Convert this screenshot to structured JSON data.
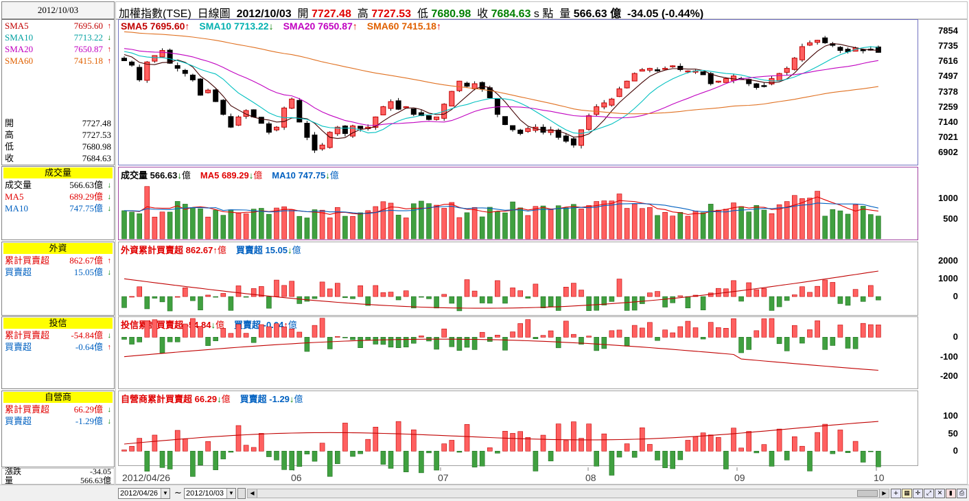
{
  "header": {
    "date_box": "2012/10/03",
    "index_name": "加權指數(TSE)",
    "chart_type": "日線圖",
    "date": "2012/10/03",
    "open_label": "開",
    "open": "7727.48",
    "high_label": "高",
    "high": "7727.53",
    "low_label": "低",
    "low": "7680.98",
    "close_label": "收",
    "close": "7684.63",
    "s_points": "s 點",
    "vol_label": "量",
    "volume": "566.63 億",
    "change": "-34.05 (-0.44%)"
  },
  "sidebar": {
    "price": [
      {
        "label": "SMA5",
        "value": "7695.60",
        "arrow": "↑",
        "color": "#c00000"
      },
      {
        "label": "SMA10",
        "value": "7713.22",
        "arrow": "↓",
        "color": "#00a0a0"
      },
      {
        "label": "SMA20",
        "value": "7650.87",
        "arrow": "↑",
        "color": "#c000c0"
      },
      {
        "label": "SMA60",
        "value": "7415.18",
        "arrow": "↑",
        "color": "#e06000"
      }
    ],
    "ohlc": [
      {
        "label": "開",
        "value": "7727.48"
      },
      {
        "label": "高",
        "value": "7727.53"
      },
      {
        "label": "低",
        "value": "7680.98"
      },
      {
        "label": "收",
        "value": "7684.63"
      }
    ],
    "volume": {
      "title": "成交量",
      "rows": [
        {
          "label": "成交量",
          "value": "566.63億",
          "arrow": "↓",
          "color": "#000000"
        },
        {
          "label": "MA5",
          "value": "689.29億",
          "arrow": "↓",
          "color": "#e00000"
        },
        {
          "label": "MA10",
          "value": "747.75億",
          "arrow": "↓",
          "color": "#0060c0"
        }
      ]
    },
    "foreign": {
      "title": "外資",
      "rows": [
        {
          "label": "累計買賣超",
          "value": "862.67億",
          "arrow": "↑",
          "color": "#e00000"
        },
        {
          "label": "買賣超",
          "value": "15.05億",
          "arrow": "↓",
          "color": "#0060c0"
        }
      ]
    },
    "trust": {
      "title": "投信",
      "rows": [
        {
          "label": "累計買賣超",
          "value": "-54.84億",
          "arrow": "↓",
          "color": "#e00000"
        },
        {
          "label": "買賣超",
          "value": "-0.64億",
          "arrow": "↑",
          "color": "#0060c0"
        }
      ]
    },
    "dealer": {
      "title": "自營商",
      "rows": [
        {
          "label": "累計買賣超",
          "value": "66.29億",
          "arrow": "↓",
          "color": "#e00000"
        },
        {
          "label": "買賣超",
          "value": "-1.29億",
          "arrow": "↓",
          "color": "#0060c0"
        }
      ]
    },
    "bottom": [
      {
        "label": "漲跌",
        "value": "-34.05"
      },
      {
        "label": "量",
        "value": "566.63億"
      }
    ]
  },
  "panel_titles": {
    "price": [
      {
        "text": "SMA5 7695.60",
        "arrow": "↑",
        "color": "#c00000"
      },
      {
        "text": "SMA10 7713.22",
        "arrow": "↓",
        "color": "#00b0b0"
      },
      {
        "text": "SMA20 7650.87",
        "arrow": "↑",
        "color": "#c000c0"
      },
      {
        "text": "SMA60 7415.18",
        "arrow": "↑",
        "color": "#e06000"
      }
    ],
    "volume": [
      {
        "text": "成交量 566.63",
        "arrow": "↓",
        "unit": "億",
        "color": "#000000"
      },
      {
        "text": "MA5 689.29",
        "arrow": "↓",
        "unit": "億",
        "color": "#e00000"
      },
      {
        "text": "MA10 747.75",
        "arrow": "↓",
        "unit": "億",
        "color": "#0060c0"
      }
    ],
    "foreign": [
      {
        "text": "外資累計買賣超 862.67",
        "arrow": "↑",
        "unit": "億",
        "color": "#e00000"
      },
      {
        "text": "買賣超 15.05",
        "arrow": "↓",
        "unit": "億",
        "color": "#0060c0"
      }
    ],
    "trust": [
      {
        "text": "投信累計買賣超 -54.84",
        "arrow": "↓",
        "unit": "億",
        "color": "#e00000"
      },
      {
        "text": "買賣超 -0.64",
        "arrow": "↑",
        "unit": "億",
        "color": "#0060c0"
      }
    ],
    "dealer": [
      {
        "text": "自營商累計買賣超 66.29",
        "arrow": "↓",
        "unit": "億",
        "color": "#e00000"
      },
      {
        "text": "買賣超 -1.29",
        "arrow": "↓",
        "unit": "億",
        "color": "#0060c0"
      }
    ]
  },
  "x_axis_labels": [
    "2012/04/26",
    "06",
    "07",
    "08",
    "09",
    "10"
  ],
  "toolbar": {
    "start_date": "2012/04/26",
    "end_date": "2012/10/03",
    "separator": "~"
  },
  "chart_data": {
    "type": "candlestick",
    "price": {
      "yticks": [
        7854,
        7735,
        7616,
        7497,
        7378,
        7259,
        7140,
        7021,
        6902
      ],
      "ylim": [
        6860,
        7880
      ],
      "series_names": [
        "SMA5",
        "SMA10",
        "SMA20",
        "SMA60"
      ],
      "last": {
        "open": 7727.48,
        "high": 7727.53,
        "low": 7680.98,
        "close": 7684.63,
        "sma5": 7695.6,
        "sma10": 7713.22,
        "sma20": 7650.87,
        "sma60": 7415.18
      },
      "closes": [
        7620,
        7585,
        7470,
        7610,
        7660,
        7700,
        7600,
        7560,
        7520,
        7470,
        7350,
        7390,
        7300,
        7200,
        7100,
        7180,
        7230,
        7180,
        7130,
        7060,
        7100,
        7250,
        7320,
        7140,
        7020,
        6920,
        6960,
        7060,
        7100,
        7050,
        7110,
        7090,
        7100,
        7180,
        7260,
        7300,
        7240,
        7260,
        7200,
        7190,
        7160,
        7180,
        7280,
        7380,
        7460,
        7420,
        7440,
        7400,
        7330,
        7200,
        7120,
        7080,
        7050,
        7090,
        7100,
        7060,
        7080,
        7020,
        6990,
        6960,
        7080,
        7190,
        7260,
        7290,
        7320,
        7400,
        7460,
        7520,
        7550,
        7560,
        7540,
        7560,
        7580,
        7550,
        7540,
        7540,
        7510,
        7440,
        7460,
        7480,
        7500,
        7480,
        7440,
        7410,
        7420,
        7480,
        7520,
        7560,
        7640,
        7730,
        7760,
        7780,
        7760,
        7740,
        7700,
        7690,
        7720,
        7700,
        7710,
        7685
      ]
    },
    "volume": {
      "yticks": [
        1000,
        500
      ],
      "unit": "億",
      "last": 566.63,
      "ma5": 689.29,
      "ma10": 747.75
    },
    "foreign": {
      "yticks": [
        2000,
        1000,
        0
      ],
      "unit": "億",
      "cumulative_last": 862.67,
      "net_last": 15.05
    },
    "trust": {
      "yticks": [
        0,
        -100,
        -200
      ],
      "unit": "億",
      "cumulative_last": -54.84,
      "net_last": -0.64
    },
    "dealer": {
      "yticks": [
        100,
        50,
        0
      ],
      "unit": "億",
      "cumulative_last": 66.29,
      "net_last": -1.29
    },
    "colors": {
      "up": "#ff6060",
      "down": "#40a040",
      "up_border": "#c00000",
      "down_border": "#207020"
    }
  }
}
